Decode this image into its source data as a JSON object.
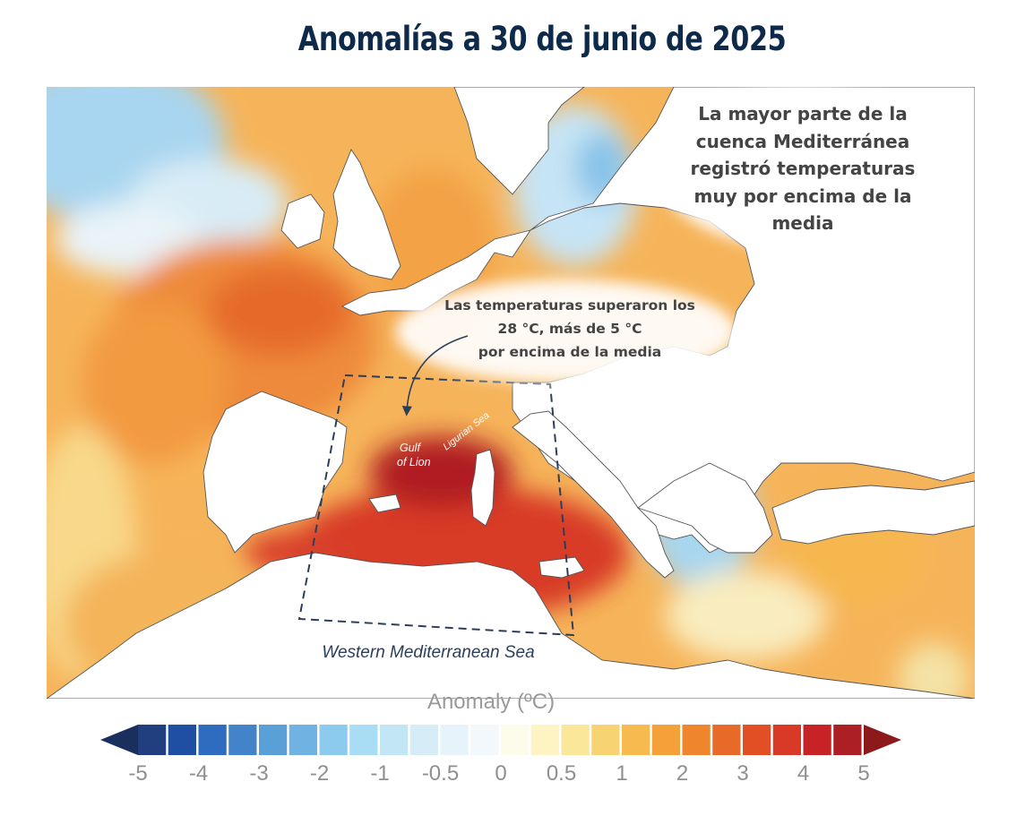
{
  "header": {
    "title": "Anomalías a 30 de junio de 2025"
  },
  "annotations": {
    "main_callout": "La mayor parte de la cuenca Mediterránea registró temperaturas muy por encima de la media",
    "spot_callout_lines": [
      "Las temperaturas superaron los",
      "28 °C, más de 5 °C",
      "por encima de la media"
    ],
    "gulf_label_lines": [
      "Gulf",
      "of Lion"
    ],
    "ligurian_label": "Ligurian Sea",
    "region_label": "Western Mediterranean Sea"
  },
  "legend": {
    "title": "Anomaly (ºC)",
    "tick_labels": [
      "-5",
      "-4",
      "-3",
      "-2",
      "-1",
      "-0.5",
      "0",
      "0.5",
      "1",
      "2",
      "3",
      "4",
      "5"
    ],
    "colors": [
      "#213f7e",
      "#1f4fa3",
      "#2f6bbf",
      "#4283c9",
      "#5aa0d8",
      "#70b2e2",
      "#8ccbee",
      "#a9dcf5",
      "#c3e6f7",
      "#d6ecf7",
      "#e6f3fa",
      "#f2f8fc",
      "#fdfbe9",
      "#fdf3c3",
      "#fbe79a",
      "#f8d372",
      "#f6ba4e",
      "#f4a13a",
      "#ef862e",
      "#e86a28",
      "#e24f24",
      "#d93a27",
      "#c72326",
      "#ac1f24"
    ],
    "low_arrow_color": "#1a2f5e",
    "high_arrow_color": "#8c1a1a"
  },
  "colors": {
    "land": "#ffffff",
    "coast": "#555555",
    "title": "#0d2a4a",
    "box": "#2c3e5a"
  }
}
